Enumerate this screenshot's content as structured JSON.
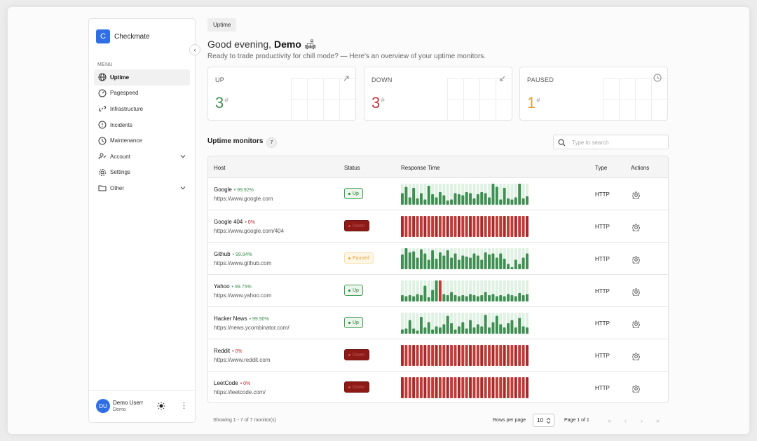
{
  "brand": {
    "logo_letter": "C",
    "name": "Checkmate"
  },
  "sidebar": {
    "menu_label": "MENU",
    "items": [
      {
        "label": "Uptime",
        "icon": "globe-icon",
        "active": true
      },
      {
        "label": "Pagespeed",
        "icon": "gauge-icon"
      },
      {
        "label": "Infrastructure",
        "icon": "link-icon"
      },
      {
        "label": "Incidents",
        "icon": "alert-circle-icon"
      },
      {
        "label": "Maintenance",
        "icon": "clock-icon"
      },
      {
        "label": "Account",
        "icon": "user-key-icon",
        "expandable": true
      },
      {
        "label": "Settings",
        "icon": "gear-icon"
      },
      {
        "label": "Other",
        "icon": "folder-icon",
        "expandable": true
      }
    ],
    "user": {
      "initials": "DU",
      "name": "Demo Userr",
      "role": "Demo"
    }
  },
  "breadcrumb": "Uptime",
  "greeting": {
    "prefix": "Good evening, ",
    "name": "Demo",
    "emoji": "🛋",
    "subtitle": "Ready to trade productivity for chill mode? — Here's an overview of your uptime monitors."
  },
  "stats": [
    {
      "label": "UP",
      "value": "3",
      "color": "#3f8f52"
    },
    {
      "label": "DOWN",
      "value": "3",
      "color": "#c2373a"
    },
    {
      "label": "PAUSED",
      "value": "1",
      "color": "#e0a13a"
    }
  ],
  "monitors_section": {
    "title": "Uptime monitors",
    "count": "7",
    "search_placeholder": "Type to search"
  },
  "table": {
    "headers": {
      "host": "Host",
      "status": "Status",
      "response": "Response Time",
      "type": "Type",
      "actions": "Actions"
    },
    "rows": [
      {
        "name": "Google",
        "pct": "• 99.92%",
        "url": "https://www.google.com",
        "status": "Up",
        "state": "up",
        "type": "HTTP",
        "bars": [
          0.55,
          0.85,
          0.35,
          0.8,
          0.3,
          0.55,
          0.25,
          0.9,
          0.5,
          0.35,
          0.6,
          0.45,
          0.2,
          0.25,
          0.55,
          0.5,
          0.45,
          0.6,
          0.55,
          0.3,
          0.5,
          0.6,
          0.55,
          0.35,
          1,
          0.85,
          0.25,
          0.8,
          0.3,
          0.25,
          0.35,
          1,
          0.3,
          0.4
        ],
        "fails": []
      },
      {
        "name": "Google 404",
        "pct": "• 0%",
        "url": "https://www.google.com/404",
        "status": "Down",
        "state": "down",
        "type": "HTTP",
        "bars": [
          1,
          1,
          1,
          1,
          1,
          1,
          1,
          1,
          1,
          1,
          1,
          1,
          1,
          1,
          1,
          1,
          1,
          1,
          1,
          1,
          1,
          1,
          1,
          1,
          1,
          1,
          1,
          1,
          1,
          1,
          1,
          1,
          1,
          1
        ],
        "fails": "all"
      },
      {
        "name": "Github",
        "pct": "• 99.94%",
        "url": "https://www.github.com",
        "status": "Paused",
        "state": "paused",
        "type": "HTTP",
        "bars": [
          0.7,
          1,
          0.8,
          0.85,
          0.55,
          0.95,
          0.75,
          0.45,
          0.9,
          0.5,
          0.8,
          0.65,
          0.9,
          0.55,
          0.75,
          0.45,
          0.65,
          0.6,
          0.55,
          0.75,
          0.65,
          0.45,
          0.8,
          0.7,
          0.75,
          0.55,
          0.75,
          0.5,
          0.25,
          0.1,
          0.45,
          0.25,
          0.55,
          0.75
        ],
        "fails": []
      },
      {
        "name": "Yahoo",
        "pct": "• 99.75%",
        "url": "https://www.yahoo.com",
        "status": "Up",
        "state": "up",
        "type": "HTTP",
        "bars": [
          0.3,
          0.25,
          0.3,
          0.25,
          0.35,
          0.3,
          0.75,
          0.2,
          0.55,
          1,
          0.95,
          0.35,
          0.3,
          0.45,
          0.3,
          0.25,
          0.3,
          0.25,
          0.35,
          0.3,
          0.25,
          0.3,
          0.45,
          0.3,
          0.35,
          0.25,
          0.3,
          0.25,
          0.35,
          0.3,
          0.25,
          0.4,
          0.3,
          0.35
        ],
        "fails": [
          10
        ]
      },
      {
        "name": "Hacker News",
        "pct": "• 99.90%",
        "url": "https://news.ycombinator.com/",
        "status": "Up",
        "state": "up",
        "type": "HTTP",
        "bars": [
          0.2,
          0.25,
          0.65,
          0.25,
          0.15,
          0.8,
          0.3,
          0.55,
          0.2,
          0.35,
          0.3,
          0.45,
          0.85,
          0.5,
          0.2,
          0.35,
          0.55,
          0.25,
          0.65,
          0.3,
          0.45,
          0.35,
          0.9,
          0.3,
          0.55,
          0.85,
          0.45,
          0.3,
          0.5,
          0.65,
          0.3,
          0.75,
          0.35,
          0.3
        ],
        "fails": []
      },
      {
        "name": "Reddit",
        "pct": "• 0%",
        "url": "https://www.reddit.com",
        "status": "Down",
        "state": "down",
        "type": "HTTP",
        "bars": [
          1,
          1,
          1,
          1,
          1,
          1,
          1,
          1,
          1,
          1,
          1,
          1,
          1,
          1,
          1,
          1,
          1,
          1,
          1,
          1,
          1,
          1,
          1,
          1,
          1,
          1,
          1,
          1,
          1,
          1,
          1,
          1,
          1,
          1
        ],
        "fails": "all"
      },
      {
        "name": "LeetCode",
        "pct": "• 0%",
        "url": "https://leetcode.com/",
        "status": "Down",
        "state": "down",
        "type": "HTTP",
        "bars": [
          1,
          1,
          1,
          1,
          1,
          1,
          1,
          1,
          1,
          1,
          1,
          1,
          1,
          1,
          1,
          1,
          1,
          1,
          1,
          1,
          1,
          1,
          1,
          1,
          1,
          1,
          1,
          1,
          1,
          1,
          1,
          1,
          1,
          1
        ],
        "fails": "all"
      }
    ]
  },
  "footer": {
    "showing": "Showing 1 - 7 of 7 monitor(s)",
    "rows_per_page_label": "Rows per page",
    "rows_per_page": "10",
    "page_info": "Page 1 of 1"
  },
  "colors": {
    "accent": "#2f6fe6",
    "up": "#3f8f52",
    "up_bg": "#dff1e2",
    "down": "#b9292c",
    "down_dark": "#8e1a17",
    "paused": "#e0a13a"
  }
}
